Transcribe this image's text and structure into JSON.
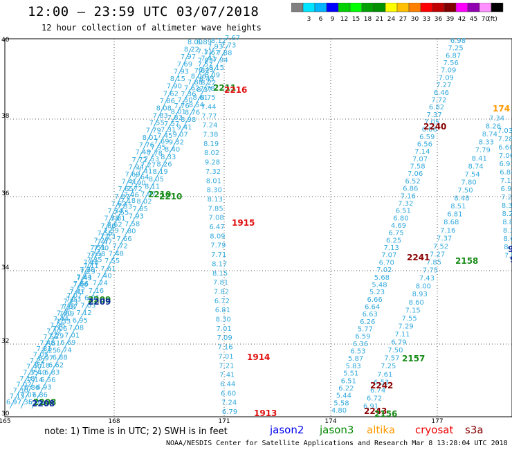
{
  "header": {
    "title": "12:00 – 23:59 UTC 03/07/2018",
    "subtitle": "12 hour collection of altimeter wave heights"
  },
  "colorbar": {
    "colors": [
      "#808080",
      "#00e5ff",
      "#00b4ff",
      "#0000ff",
      "#00d000",
      "#00ff00",
      "#00a000",
      "#009000",
      "#ffff00",
      "#ffc000",
      "#ff8000",
      "#ff0000",
      "#c00000",
      "#800000",
      "#ff00ff",
      "#9000b0",
      "#ff90ff",
      "#000000"
    ],
    "labels": [
      "3",
      "6",
      "9",
      "12",
      "15",
      "18",
      "21",
      "24",
      "27",
      "30",
      "33",
      "36",
      "39",
      "42",
      "45",
      "70"
    ],
    "unit": "(ft)"
  },
  "axes": {
    "x_ticks": [
      "165",
      "168",
      "171",
      "174",
      "177"
    ],
    "y_ticks": [
      "40",
      "38",
      "36",
      "34",
      "32",
      "30"
    ]
  },
  "tracks": [
    {
      "name": "track-a",
      "color": "#33aadd",
      "values": [
        "6.97",
        "7.15",
        "7.30",
        "7.02",
        "7.18",
        "7.35",
        "7.40",
        "7.22",
        "7.05",
        "7.31",
        "7.48",
        "7.56",
        "7.12",
        "7.26",
        "7.44",
        "7.60",
        "7.38",
        "7.21",
        "7.07",
        "7.52",
        "7.66",
        "7.43",
        "7.29",
        "7.11",
        "7.35",
        "7.58",
        "7.70",
        "7.47",
        "7.23",
        "7.39",
        "7.62",
        "7.81",
        "7.55",
        "7.33",
        "7.18",
        "7.46",
        "7.72",
        "7.90",
        "7.64",
        "7.41",
        "7.27",
        "7.53",
        "7.78",
        "7.95",
        "7.69",
        "7.45",
        "7.31",
        "7.57",
        "7.83",
        "8.01",
        "7.76",
        "7.50",
        "7.36",
        "7.62",
        "7.88",
        "8.06",
        "7.82",
        "7.57",
        "7.41",
        "7.67",
        "7.93",
        "8.12"
      ]
    },
    {
      "name": "track-b",
      "color": "#33aadd",
      "values": [
        "7.35",
        "7.07",
        "6.86",
        "7.14",
        "7.40",
        "7.18",
        "6.97",
        "7.25",
        "7.51",
        "7.29",
        "7.06",
        "7.33",
        "7.59",
        "7.37",
        "7.13",
        "7.41",
        "7.66",
        "7.44",
        "7.20",
        "7.48",
        "7.73",
        "7.51",
        "7.27",
        "7.55",
        "7.80",
        "7.58",
        "7.34",
        "7.62",
        "7.87",
        "7.65",
        "7.41",
        "7.69",
        "7.94",
        "7.72",
        "7.48",
        "7.76",
        "8.01",
        "7.79",
        "7.55",
        "7.83",
        "8.08",
        "7.86",
        "7.62",
        "7.90",
        "8.15",
        "7.93",
        "7.69",
        "7.97",
        "8.22",
        "8.00"
      ]
    },
    {
      "name": "track-c",
      "color": "#33aadd",
      "values": [
        "6.08",
        "6.86",
        "6.93",
        "6.56",
        "6.83",
        "6.62",
        "6.88",
        "6.74",
        "6.69",
        "7.01",
        "7.08",
        "6.95",
        "7.12",
        "7.03",
        "6.91",
        "7.16",
        "7.24",
        "7.40",
        "7.61",
        "7.55",
        "7.48",
        "7.72",
        "7.66",
        "7.80",
        "7.58",
        "7.93",
        "7.85",
        "8.02",
        "7.97",
        "8.11",
        "8.05",
        "8.19",
        "8.26",
        "8.33",
        "8.40",
        "9.32",
        "9.07",
        "9.41",
        "8.98",
        "8.76",
        "8.54",
        "8.61",
        "8.37",
        "8.22",
        "8.09",
        "8.15",
        "7.94",
        "7.88",
        "7.73",
        "7.67"
      ]
    },
    {
      "name": "track-d",
      "color": "#33aadd",
      "values": [
        "6.89",
        "7.11",
        "7.03",
        "6.43",
        "8.43",
        "7.78",
        "8.75",
        "7.44",
        "7.77",
        "7.24",
        "7.38",
        "8.19",
        "8.02",
        "9.28",
        "7.32",
        "8.01",
        "8.30",
        "8.13",
        "7.85",
        "7.08",
        "6.47",
        "8.09",
        "7.79",
        "7.71",
        "8.17",
        "8.15",
        "7.81",
        "7.82",
        "6.72",
        "6.81",
        "8.30",
        "7.01",
        "7.09",
        "7.16",
        "7.01",
        "7.21",
        "7.41",
        "6.44",
        "6.60",
        "7.24",
        "6.79"
      ]
    },
    {
      "name": "track-e",
      "color": "#33aadd",
      "values": [
        "4.80",
        "5.58",
        "5.44",
        "6.22",
        "6.51",
        "5.51",
        "5.83",
        "5.87",
        "6.53",
        "6.36",
        "6.59",
        "5.77",
        "6.26",
        "6.63",
        "6.64",
        "6.66",
        "5.23",
        "5.48",
        "5.68",
        "7.02",
        "6.70",
        "7.07",
        "7.13",
        "6.25",
        "6.75",
        "4.69",
        "6.80",
        "6.51",
        "7.32",
        "7.16",
        "6.86",
        "6.52",
        "7.06",
        "7.58",
        "7.07",
        "7.14",
        "6.56",
        "6.59",
        "6.06",
        "7.05",
        "7.37",
        "6.82",
        "7.72",
        "6.46",
        "7.27",
        "7.09",
        "7.09",
        "7.56",
        "6.87",
        "7.25",
        "6.98"
      ]
    },
    {
      "name": "track-f",
      "color": "#33aadd",
      "values": [
        "6.91",
        "6.72",
        "6.74",
        "6.53",
        "7.61",
        "7.25",
        "7.57",
        "7.50",
        "6.79",
        "7.11",
        "7.29",
        "7.55",
        "7.15",
        "8.60",
        "8.93",
        "8.00",
        "7.43",
        "7.75",
        "7.85",
        "7.27",
        "7.52",
        "7.37",
        "7.16",
        "8.68",
        "6.81",
        "8.51",
        "8.48",
        "7.50",
        "7.80",
        "7.54",
        "8.74",
        "8.41",
        "7.79",
        "8.33",
        "8.74",
        "8.26",
        "7.34"
      ]
    },
    {
      "name": "track-g",
      "color": "#33aadd",
      "values": [
        "7.03",
        "7.28",
        "6.60",
        "7.06",
        "6.91",
        "6.84",
        "7.14",
        "6.96",
        "7.22",
        "8.38",
        "8.27",
        "8.80",
        "8.30",
        "8.64",
        "8.12",
        "7.98"
      ]
    }
  ],
  "passes": [
    {
      "label": "2211",
      "color": "#1a8c1a"
    },
    {
      "label": "2216",
      "color": "#e01010"
    },
    {
      "label": "2210",
      "color": "#1a8c1a"
    },
    {
      "label": "2210",
      "color": "#1a8c1a"
    },
    {
      "label": "2209",
      "color": "#1a8c1a"
    },
    {
      "label": "2209",
      "color": "#0a2a9a"
    },
    {
      "label": "2208",
      "color": "#1a8c1a"
    },
    {
      "label": "2208",
      "color": "#0a2a9a"
    },
    {
      "label": "1915",
      "color": "#e01010"
    },
    {
      "label": "1914",
      "color": "#e01010"
    },
    {
      "label": "1913",
      "color": "#e01010"
    },
    {
      "label": "2240",
      "color": "#8a0000"
    },
    {
      "label": "2241",
      "color": "#8a0000"
    },
    {
      "label": "2242",
      "color": "#8a0000"
    },
    {
      "label": "2243",
      "color": "#8a0000"
    },
    {
      "label": "2158",
      "color": "#1a8c1a"
    },
    {
      "label": "2157",
      "color": "#1a8c1a"
    },
    {
      "label": "2156",
      "color": "#1a8c1a"
    },
    {
      "label": "174",
      "color": "#ff9900"
    },
    {
      "label": "9",
      "color": "#0a2a9a"
    },
    {
      "label": "9",
      "color": "#0a2a9a"
    }
  ],
  "note": {
    "text": "note: 1) Time is in UTC; 2) SWH is in feet",
    "legend": [
      {
        "label": "jason2",
        "color": "#0000ee"
      },
      {
        "label": "jason3",
        "color": "#008800"
      },
      {
        "label": "altika",
        "color": "#ff9900"
      },
      {
        "label": "cryosat",
        "color": "#ee0000"
      },
      {
        "label": "s3a",
        "color": "#880000"
      }
    ]
  },
  "footer": {
    "credit": "NOAA/NESDIS Center for Satellite Applications and Research   Mar  8 13:28:04 UTC 2018"
  }
}
